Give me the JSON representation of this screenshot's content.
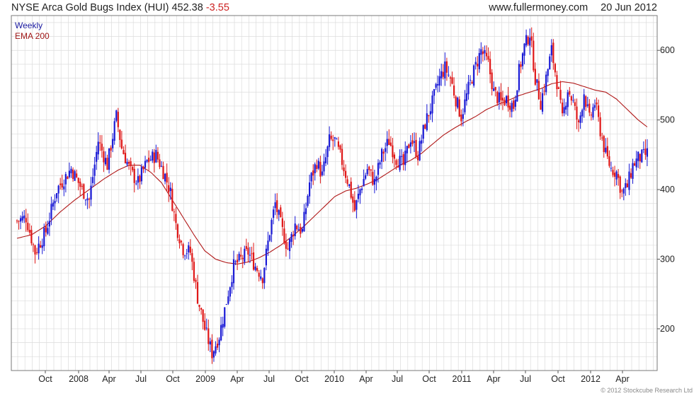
{
  "header": {
    "index_name": "NYSE Arca Gold Bugs Index (HUI)",
    "last": "452.38",
    "change": "-3.55",
    "source": "www.fullermoney.com",
    "date": "20 Jun 2012"
  },
  "legend": {
    "weekly": "Weekly",
    "ema": "EMA 200"
  },
  "copyright": "© 2012 Stockcube Research Ltd",
  "colors": {
    "up": "#1a1ad6",
    "down": "#e01818",
    "ema": "#b01818",
    "grid": "#dcdcdc",
    "legend_weekly": "#1a1aa0",
    "legend_ema": "#a01818"
  },
  "chart_data": {
    "type": "candlestick",
    "title": "NYSE Arca Gold Bugs Index (HUI) 452.38 -3.55",
    "frequency": "Weekly",
    "x_range": [
      "2007-08",
      "2012-06-20"
    ],
    "y_axis": {
      "side": "right",
      "min": 140,
      "max": 650,
      "ticks": [
        200,
        300,
        400,
        500,
        600
      ]
    },
    "x_ticks": [
      "Oct",
      "2008",
      "Apr",
      "Jul",
      "Oct",
      "2009",
      "Apr",
      "Jul",
      "Oct",
      "2010",
      "Apr",
      "Jul",
      "Oct",
      "2011",
      "Apr",
      "Jul",
      "Oct",
      "2012",
      "Apr"
    ],
    "grid": true,
    "legend_position": "top-left",
    "price_path": [
      {
        "x": 0,
        "y": 355
      },
      {
        "x": 5,
        "y": 360
      },
      {
        "x": 10,
        "y": 310
      },
      {
        "x": 16,
        "y": 340
      },
      {
        "x": 22,
        "y": 400
      },
      {
        "x": 30,
        "y": 430
      },
      {
        "x": 36,
        "y": 400
      },
      {
        "x": 40,
        "y": 385
      },
      {
        "x": 45,
        "y": 470
      },
      {
        "x": 50,
        "y": 435
      },
      {
        "x": 55,
        "y": 505
      },
      {
        "x": 58,
        "y": 460
      },
      {
        "x": 63,
        "y": 425
      },
      {
        "x": 67,
        "y": 410
      },
      {
        "x": 72,
        "y": 440
      },
      {
        "x": 77,
        "y": 450
      },
      {
        "x": 82,
        "y": 420
      },
      {
        "x": 85,
        "y": 395
      },
      {
        "x": 88,
        "y": 350
      },
      {
        "x": 92,
        "y": 315
      },
      {
        "x": 96,
        "y": 310
      },
      {
        "x": 100,
        "y": 245
      },
      {
        "x": 104,
        "y": 200
      },
      {
        "x": 108,
        "y": 165
      },
      {
        "x": 112,
        "y": 190
      },
      {
        "x": 116,
        "y": 240
      },
      {
        "x": 120,
        "y": 290
      },
      {
        "x": 124,
        "y": 300
      },
      {
        "x": 128,
        "y": 310
      },
      {
        "x": 132,
        "y": 290
      },
      {
        "x": 136,
        "y": 275
      },
      {
        "x": 140,
        "y": 340
      },
      {
        "x": 143,
        "y": 380
      },
      {
        "x": 147,
        "y": 340
      },
      {
        "x": 150,
        "y": 315
      },
      {
        "x": 154,
        "y": 350
      },
      {
        "x": 158,
        "y": 340
      },
      {
        "x": 162,
        "y": 410
      },
      {
        "x": 166,
        "y": 440
      },
      {
        "x": 169,
        "y": 420
      },
      {
        "x": 173,
        "y": 470
      },
      {
        "x": 176,
        "y": 470
      },
      {
        "x": 180,
        "y": 440
      },
      {
        "x": 184,
        "y": 405
      },
      {
        "x": 187,
        "y": 370
      },
      {
        "x": 190,
        "y": 400
      },
      {
        "x": 194,
        "y": 430
      },
      {
        "x": 198,
        "y": 410
      },
      {
        "x": 202,
        "y": 450
      },
      {
        "x": 206,
        "y": 470
      },
      {
        "x": 210,
        "y": 445
      },
      {
        "x": 214,
        "y": 435
      },
      {
        "x": 218,
        "y": 475
      },
      {
        "x": 222,
        "y": 450
      },
      {
        "x": 226,
        "y": 495
      },
      {
        "x": 230,
        "y": 525
      },
      {
        "x": 234,
        "y": 560
      },
      {
        "x": 237,
        "y": 575
      },
      {
        "x": 240,
        "y": 560
      },
      {
        "x": 243,
        "y": 530
      },
      {
        "x": 246,
        "y": 505
      },
      {
        "x": 250,
        "y": 545
      },
      {
        "x": 253,
        "y": 570
      },
      {
        "x": 257,
        "y": 600
      },
      {
        "x": 261,
        "y": 580
      },
      {
        "x": 264,
        "y": 540
      },
      {
        "x": 268,
        "y": 525
      },
      {
        "x": 271,
        "y": 530
      },
      {
        "x": 275,
        "y": 520
      },
      {
        "x": 278,
        "y": 570
      },
      {
        "x": 281,
        "y": 605
      },
      {
        "x": 284,
        "y": 625
      },
      {
        "x": 287,
        "y": 560
      },
      {
        "x": 290,
        "y": 525
      },
      {
        "x": 293,
        "y": 560
      },
      {
        "x": 296,
        "y": 600
      },
      {
        "x": 299,
        "y": 555
      },
      {
        "x": 302,
        "y": 500
      },
      {
        "x": 305,
        "y": 545
      },
      {
        "x": 308,
        "y": 525
      },
      {
        "x": 311,
        "y": 490
      },
      {
        "x": 314,
        "y": 540
      },
      {
        "x": 317,
        "y": 500
      },
      {
        "x": 320,
        "y": 525
      },
      {
        "x": 323,
        "y": 485
      },
      {
        "x": 326,
        "y": 450
      },
      {
        "x": 329,
        "y": 430
      },
      {
        "x": 332,
        "y": 425
      },
      {
        "x": 335,
        "y": 395
      },
      {
        "x": 338,
        "y": 405
      },
      {
        "x": 341,
        "y": 435
      },
      {
        "x": 344,
        "y": 445
      },
      {
        "x": 347,
        "y": 448
      },
      {
        "x": 349,
        "y": 452
      }
    ],
    "series": [
      {
        "name": "Weekly",
        "kind": "candles"
      },
      {
        "name": "EMA 200",
        "kind": "line",
        "values": [
          {
            "x": 0,
            "y": 330
          },
          {
            "x": 8,
            "y": 335
          },
          {
            "x": 16,
            "y": 348
          },
          {
            "x": 24,
            "y": 368
          },
          {
            "x": 32,
            "y": 385
          },
          {
            "x": 40,
            "y": 400
          },
          {
            "x": 48,
            "y": 415
          },
          {
            "x": 56,
            "y": 428
          },
          {
            "x": 62,
            "y": 435
          },
          {
            "x": 68,
            "y": 435
          },
          {
            "x": 74,
            "y": 425
          },
          {
            "x": 80,
            "y": 410
          },
          {
            "x": 86,
            "y": 385
          },
          {
            "x": 92,
            "y": 360
          },
          {
            "x": 98,
            "y": 335
          },
          {
            "x": 104,
            "y": 312
          },
          {
            "x": 110,
            "y": 300
          },
          {
            "x": 116,
            "y": 295
          },
          {
            "x": 122,
            "y": 293
          },
          {
            "x": 128,
            "y": 296
          },
          {
            "x": 134,
            "y": 302
          },
          {
            "x": 140,
            "y": 310
          },
          {
            "x": 146,
            "y": 320
          },
          {
            "x": 152,
            "y": 332
          },
          {
            "x": 158,
            "y": 345
          },
          {
            "x": 164,
            "y": 360
          },
          {
            "x": 170,
            "y": 375
          },
          {
            "x": 176,
            "y": 390
          },
          {
            "x": 182,
            "y": 398
          },
          {
            "x": 188,
            "y": 402
          },
          {
            "x": 194,
            "y": 408
          },
          {
            "x": 200,
            "y": 415
          },
          {
            "x": 206,
            "y": 425
          },
          {
            "x": 212,
            "y": 435
          },
          {
            "x": 218,
            "y": 442
          },
          {
            "x": 224,
            "y": 452
          },
          {
            "x": 230,
            "y": 465
          },
          {
            "x": 236,
            "y": 478
          },
          {
            "x": 242,
            "y": 488
          },
          {
            "x": 248,
            "y": 497
          },
          {
            "x": 254,
            "y": 505
          },
          {
            "x": 260,
            "y": 515
          },
          {
            "x": 266,
            "y": 522
          },
          {
            "x": 272,
            "y": 528
          },
          {
            "x": 278,
            "y": 535
          },
          {
            "x": 284,
            "y": 540
          },
          {
            "x": 290,
            "y": 545
          },
          {
            "x": 296,
            "y": 552
          },
          {
            "x": 302,
            "y": 555
          },
          {
            "x": 308,
            "y": 553
          },
          {
            "x": 314,
            "y": 548
          },
          {
            "x": 320,
            "y": 543
          },
          {
            "x": 326,
            "y": 540
          },
          {
            "x": 332,
            "y": 530
          },
          {
            "x": 338,
            "y": 515
          },
          {
            "x": 344,
            "y": 500
          },
          {
            "x": 349,
            "y": 490
          }
        ]
      }
    ]
  }
}
